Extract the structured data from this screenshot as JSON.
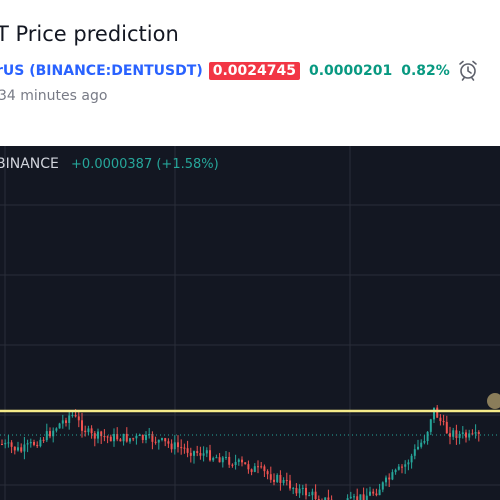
{
  "header": {
    "title": "T Price prediction",
    "symbol_prefix": "rUS (",
    "symbol": "BINANCE:DENTUSDT",
    "symbol_suffix": ")",
    "price": "0.0024745",
    "change": "0.0000201",
    "change_pct": "0.82%",
    "time_ago": "34 minutes ago",
    "alarm_icon": "alarm-clock-icon"
  },
  "chart": {
    "exchange": "BINANCE",
    "change_text": "+0.0000387 (+1.58%)",
    "colors": {
      "background": "#131722",
      "up": "#26a69a",
      "down": "#ef5350",
      "resistance_line": "#f5eb8a",
      "grid": "#2a2e39"
    }
  }
}
